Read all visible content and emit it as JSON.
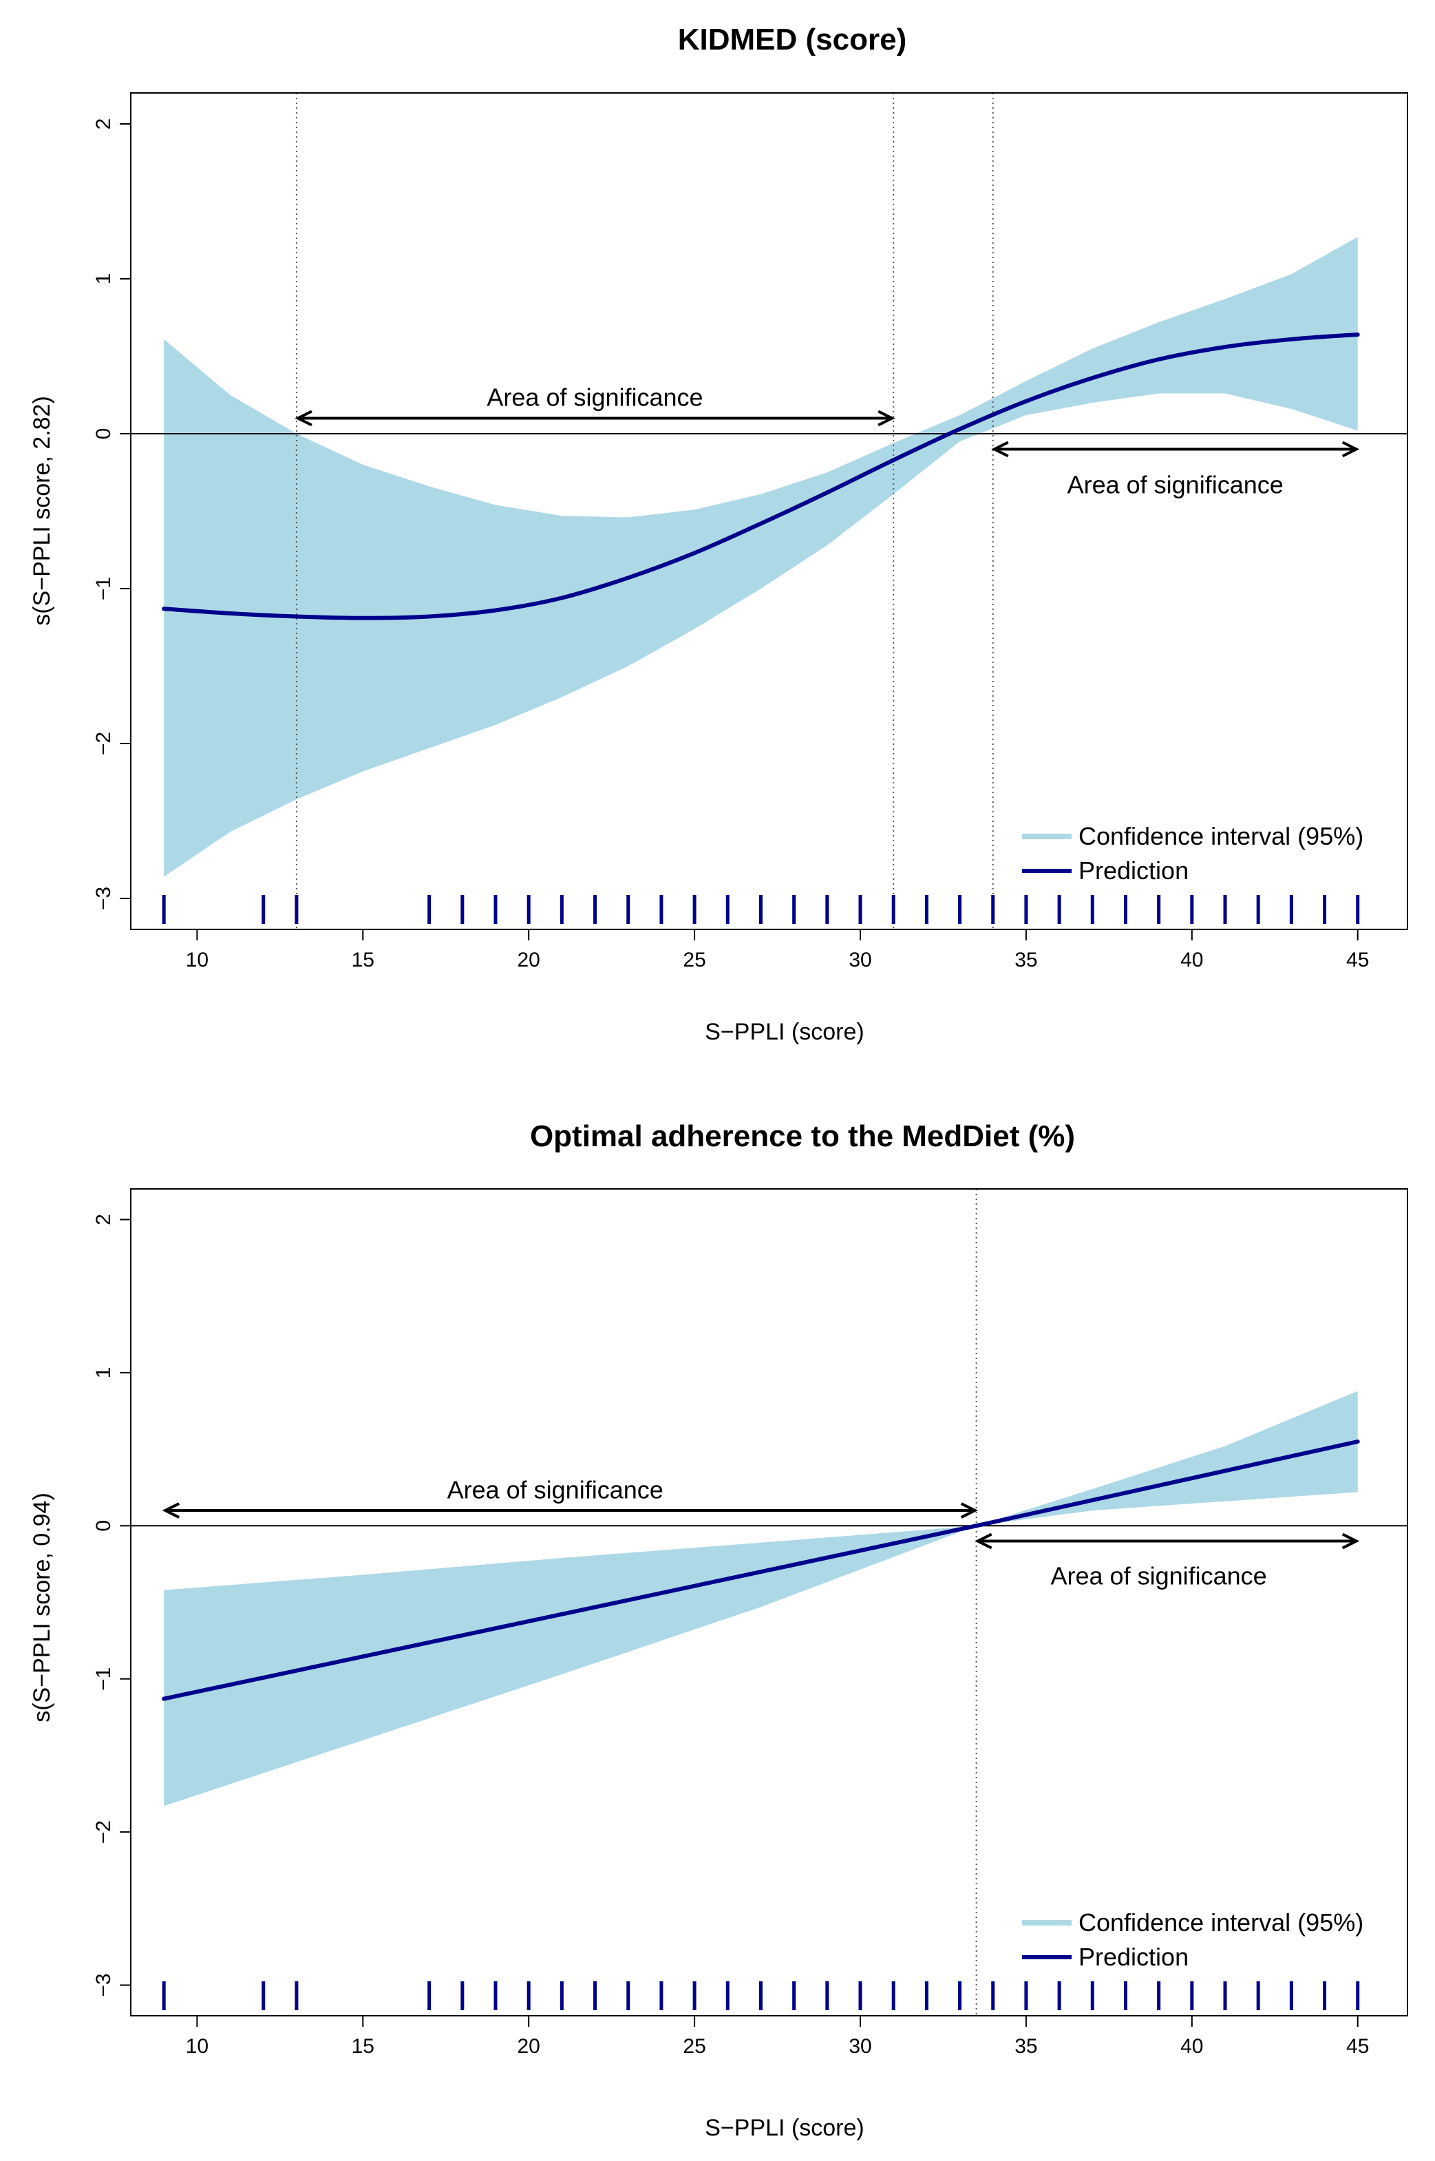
{
  "colors": {
    "band": "#add8e6",
    "line": "#00008b",
    "rug": "#00008b",
    "axis": "#000000",
    "background": "#ffffff"
  },
  "chart_data": [
    {
      "type": "line",
      "title": "KIDMED (score)",
      "xlabel": "S−PPLI (score)",
      "ylabel": "s(S−PPLI score, 2.82)",
      "xlim": [
        8,
        46.5
      ],
      "ylim": [
        -3.2,
        2.2
      ],
      "xticks": [
        10,
        15,
        20,
        25,
        30,
        35,
        40,
        45
      ],
      "yticks": [
        -3,
        -2,
        -1,
        0,
        1,
        2
      ],
      "ytick_labels": [
        "−3",
        "−2",
        "−1",
        "0",
        "1",
        "2"
      ],
      "grid": false,
      "legend_position": "bottom-right",
      "legend": [
        "Confidence interval (95%)",
        "Prediction"
      ],
      "zero_line": 0,
      "vlines": [
        13,
        31,
        34
      ],
      "series": [
        {
          "name": "Prediction",
          "x": [
            9,
            11,
            13,
            15,
            17,
            19,
            21,
            23,
            25,
            27,
            29,
            31,
            33,
            35,
            37,
            39,
            41,
            43,
            45
          ],
          "y": [
            -1.13,
            -1.16,
            -1.18,
            -1.19,
            -1.18,
            -1.14,
            -1.06,
            -0.93,
            -0.77,
            -0.58,
            -0.38,
            -0.17,
            0.03,
            0.21,
            0.36,
            0.48,
            0.56,
            0.61,
            0.64
          ]
        },
        {
          "name": "Confidence interval (95%)",
          "x": [
            9,
            11,
            13,
            15,
            17,
            19,
            21,
            23,
            25,
            27,
            29,
            31,
            33,
            35,
            37,
            39,
            41,
            43,
            45
          ],
          "lower": [
            -2.86,
            -2.57,
            -2.36,
            -2.18,
            -2.03,
            -1.88,
            -1.7,
            -1.5,
            -1.26,
            -1.0,
            -0.72,
            -0.39,
            -0.05,
            0.12,
            0.2,
            0.26,
            0.26,
            0.16,
            0.02
          ],
          "upper": [
            0.61,
            0.25,
            0.0,
            -0.2,
            -0.34,
            -0.46,
            -0.53,
            -0.54,
            -0.49,
            -0.39,
            -0.25,
            -0.06,
            0.12,
            0.34,
            0.55,
            0.72,
            0.87,
            1.03,
            1.27
          ]
        }
      ],
      "annotations": [
        {
          "text": "Area of significance",
          "x_from": 13,
          "x_to": 31,
          "y": 0.1,
          "label_x": 22,
          "label_y": 0.18
        },
        {
          "text": "Area of significance",
          "x_from": 34,
          "x_to": 45,
          "y": -0.1,
          "label_x": 39.5,
          "label_y": -0.33
        }
      ],
      "rug": [
        9,
        12,
        13,
        17,
        18,
        19,
        20,
        21,
        22,
        23,
        24,
        25,
        26,
        27,
        28,
        29,
        30,
        31,
        32,
        33,
        34,
        35,
        36,
        37,
        38,
        39,
        40,
        41,
        42,
        43,
        44,
        45
      ]
    },
    {
      "type": "line",
      "title": "Optimal adherence to the MedDiet (%)",
      "xlabel": "S−PPLI (score)",
      "ylabel": "s(S−PPLI score, 0.94)",
      "xlim": [
        8,
        46.5
      ],
      "ylim": [
        -3.2,
        2.2
      ],
      "xticks": [
        10,
        15,
        20,
        25,
        30,
        35,
        40,
        45
      ],
      "yticks": [
        -3,
        -2,
        -1,
        0,
        1,
        2
      ],
      "ytick_labels": [
        "−3",
        "−2",
        "−1",
        "0",
        "1",
        "2"
      ],
      "grid": false,
      "legend_position": "bottom-right",
      "legend": [
        "Confidence interval (95%)",
        "Prediction"
      ],
      "zero_line": 0,
      "vlines": [
        33.5
      ],
      "series": [
        {
          "name": "Prediction",
          "x": [
            9,
            33.5,
            45
          ],
          "y": [
            -1.13,
            0.0,
            0.55
          ]
        },
        {
          "name": "Confidence interval (95%)",
          "x": [
            9,
            15,
            21,
            27,
            33.5,
            37,
            41,
            45
          ],
          "lower": [
            -1.83,
            -1.4,
            -0.97,
            -0.53,
            0.0,
            0.1,
            0.16,
            0.22
          ],
          "upper": [
            -0.42,
            -0.32,
            -0.21,
            -0.11,
            0.0,
            0.24,
            0.52,
            0.88
          ]
        }
      ],
      "annotations": [
        {
          "text": "Area of significance",
          "x_from": 9,
          "x_to": 33.5,
          "y": 0.1,
          "label_x": 20.8,
          "label_y": 0.18
        },
        {
          "text": "Area of significance",
          "x_from": 33.5,
          "x_to": 45,
          "y": -0.1,
          "label_x": 39,
          "label_y": -0.33
        }
      ],
      "rug": [
        9,
        12,
        13,
        17,
        18,
        19,
        20,
        21,
        22,
        23,
        24,
        25,
        26,
        27,
        28,
        29,
        30,
        31,
        32,
        33,
        34,
        35,
        36,
        37,
        38,
        39,
        40,
        41,
        42,
        43,
        44,
        45
      ]
    }
  ]
}
